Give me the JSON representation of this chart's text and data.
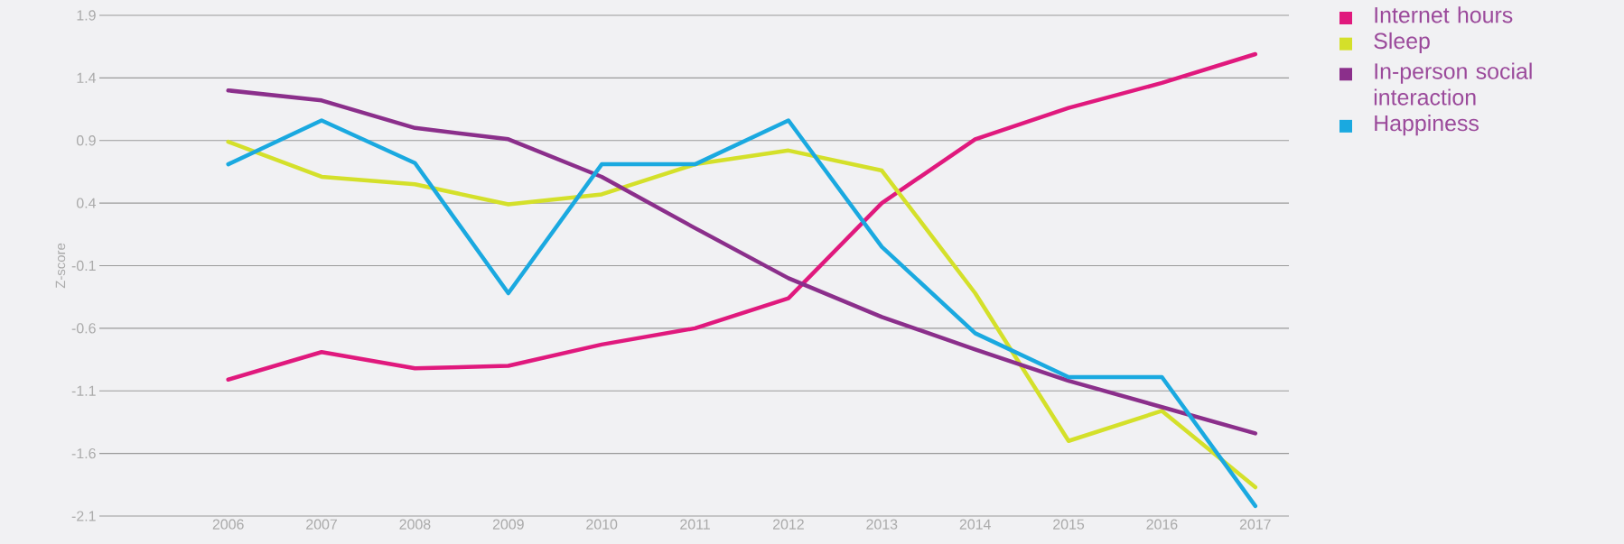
{
  "chart_data": {
    "type": "line",
    "ylabel": "Z-score",
    "categories": [
      "2006",
      "2007",
      "2008",
      "2009",
      "2010",
      "2011",
      "2012",
      "2013",
      "2014",
      "2015",
      "2016",
      "2017"
    ],
    "series": [
      {
        "name": "Internet hours",
        "color": "#e0197d",
        "values": [
          -1.01,
          -0.79,
          -0.92,
          -0.9,
          -0.73,
          -0.6,
          -0.36,
          0.4,
          0.91,
          1.16,
          1.36,
          1.59
        ]
      },
      {
        "name": "Sleep",
        "color": "#d4e02a",
        "values": [
          0.89,
          0.61,
          0.55,
          0.39,
          0.47,
          0.71,
          0.82,
          0.66,
          -0.32,
          -1.5,
          -1.26,
          -1.87
        ]
      },
      {
        "name": "In-person social interaction",
        "color": "#8b2f8b",
        "values": [
          1.3,
          1.22,
          1.0,
          0.91,
          0.61,
          0.2,
          -0.2,
          -0.51,
          -0.77,
          -1.02,
          -1.23,
          -1.44
        ]
      },
      {
        "name": "Happiness",
        "color": "#1aa9e0",
        "values": [
          0.71,
          1.06,
          0.72,
          -0.32,
          0.71,
          0.71,
          1.06,
          0.05,
          -0.64,
          -0.99,
          -0.99,
          -2.02
        ]
      }
    ],
    "ylim": [
      -2.1,
      1.9
    ],
    "yticks": [
      -2.1,
      -1.6,
      -1.1,
      -0.6,
      -0.1,
      0.4,
      0.9,
      1.4,
      1.9
    ],
    "grid": "y",
    "legend": "top right",
    "marker": "none",
    "line_style": "solid"
  }
}
